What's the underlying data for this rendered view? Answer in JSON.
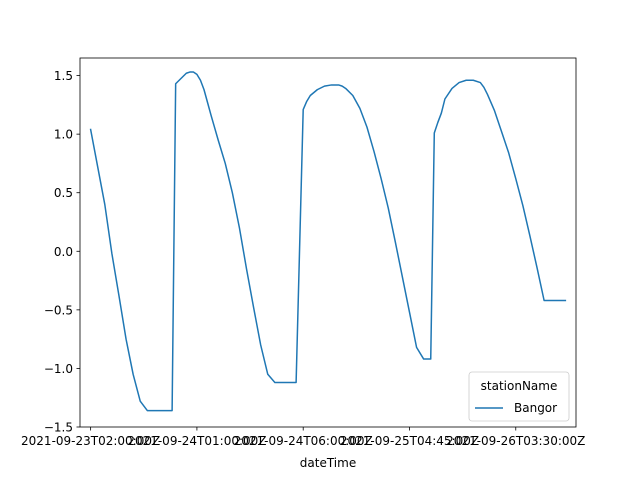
{
  "chart_data": {
    "type": "line",
    "title": "",
    "xlabel": "dateTime",
    "ylabel": "",
    "xlim": [
      -3,
      137
    ],
    "ylim": [
      -1.5,
      1.65
    ],
    "grid": false,
    "legend": {
      "title": "stationName",
      "placement": "lower-right"
    },
    "x_ticks": [
      {
        "pos": 0,
        "label": "2021-09-23T02:00:00Z"
      },
      {
        "pos": 30,
        "label": "2021-09-24T01:00:00Z"
      },
      {
        "pos": 60,
        "label": "2021-09-24T06:00:00Z"
      },
      {
        "pos": 90,
        "label": "2021-09-25T04:45:00Z"
      },
      {
        "pos": 120,
        "label": "2021-09-26T03:30:00Z"
      }
    ],
    "y_ticks": [
      -1.5,
      -1.0,
      -0.5,
      0.0,
      0.5,
      1.0,
      1.5
    ],
    "y_tick_labels": [
      "−1.5",
      "−1.0",
      "−0.5",
      "0.0",
      "0.5",
      "1.0",
      "1.5"
    ],
    "series": [
      {
        "name": "Bangor",
        "color": "#1f77b4",
        "x": [
          0,
          2,
          4,
          6,
          8,
          10,
          12,
          14,
          16,
          18,
          20,
          22,
          23,
          24,
          25,
          26,
          27,
          28,
          29,
          30,
          31,
          32,
          33,
          34,
          36,
          38,
          40,
          42,
          44,
          46,
          48,
          50,
          52,
          54,
          56,
          58,
          60,
          61,
          62,
          64,
          66,
          68,
          70,
          71,
          72,
          74,
          76,
          78,
          80,
          82,
          84,
          86,
          88,
          90,
          92,
          94,
          96,
          97,
          98,
          99,
          100,
          102,
          104,
          106,
          108,
          110,
          111,
          112,
          114,
          116,
          118,
          120,
          122,
          124,
          126,
          128,
          130,
          132,
          134
        ],
        "y": [
          1.04,
          0.72,
          0.4,
          -0.02,
          -0.38,
          -0.75,
          -1.05,
          -1.28,
          -1.36,
          -1.36,
          -1.36,
          -1.36,
          -1.36,
          1.43,
          1.46,
          1.49,
          1.52,
          1.53,
          1.53,
          1.51,
          1.46,
          1.38,
          1.27,
          1.16,
          0.95,
          0.75,
          0.5,
          0.2,
          -0.15,
          -0.48,
          -0.8,
          -1.05,
          -1.12,
          -1.12,
          -1.12,
          -1.12,
          1.21,
          1.28,
          1.33,
          1.38,
          1.41,
          1.42,
          1.42,
          1.41,
          1.39,
          1.33,
          1.22,
          1.06,
          0.85,
          0.62,
          0.37,
          0.08,
          -0.22,
          -0.52,
          -0.82,
          -0.92,
          -0.92,
          1.01,
          1.1,
          1.18,
          1.3,
          1.39,
          1.44,
          1.46,
          1.46,
          1.44,
          1.4,
          1.34,
          1.2,
          1.02,
          0.84,
          0.62,
          0.39,
          0.13,
          -0.14,
          -0.42,
          -0.42,
          -0.42,
          -0.42
        ]
      }
    ]
  }
}
